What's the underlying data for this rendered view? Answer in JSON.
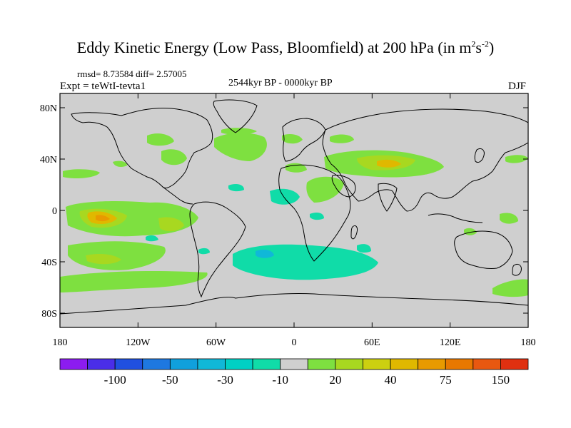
{
  "title": {
    "main": "Eddy Kinetic Energy (Low Pass, Bloomfield) at 200 hPa (in m",
    "exp1": "2",
    "mid": "s",
    "exp2": "-2",
    "close": ")"
  },
  "stats": "rmsd= 8.73584 diff= 2.57005",
  "experiment": "Expt = teWtI-tevta1",
  "period": "2544kyr BP - 0000kyr BP",
  "season": "DJF",
  "axes": {
    "lat_ticks": [
      "80N",
      "40N",
      "0",
      "40S",
      "80S"
    ],
    "lon_ticks": [
      "180",
      "120W",
      "60W",
      "0",
      "60E",
      "120E",
      "180"
    ]
  },
  "colorbar": {
    "colors": [
      "#8c1cf0",
      "#4a2ee8",
      "#2050e0",
      "#1e78e0",
      "#10a0dc",
      "#10b8d8",
      "#00d0c4",
      "#10dca8",
      "#cfcfcf",
      "#7ee040",
      "#a8d820",
      "#ccd010",
      "#e0b800",
      "#e89a00",
      "#e87800",
      "#e85810",
      "#e03010"
    ],
    "labels": [
      "-100",
      "-50",
      "-30",
      "-10",
      "20",
      "40",
      "75",
      "150"
    ]
  },
  "colors": {
    "land_ocean": "#cfcfcf",
    "low_pos": "#7ee040",
    "mid_pos": "#a8d820",
    "high_pos": "#e0b800",
    "very_high_pos": "#e87800",
    "low_neg": "#10dca8"
  }
}
